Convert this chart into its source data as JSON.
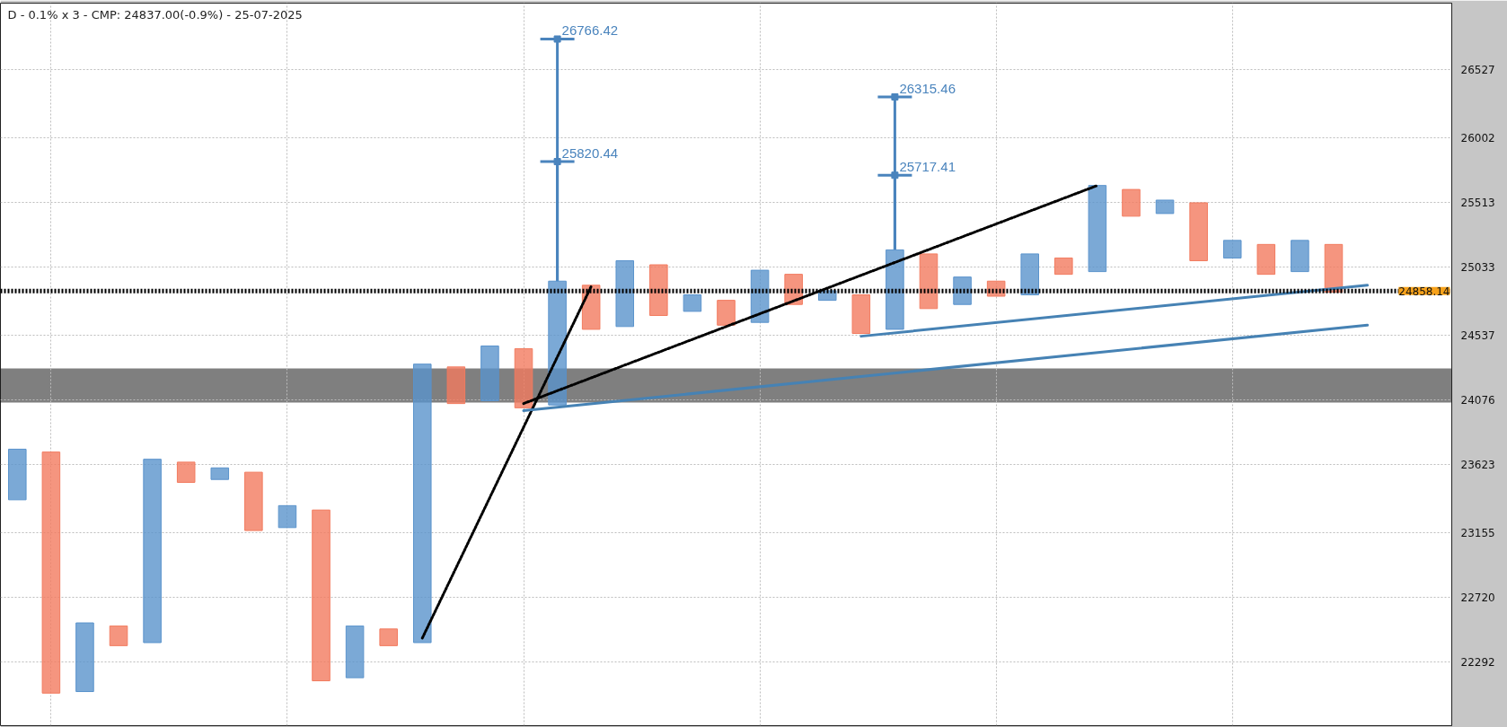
{
  "chart_data": {
    "type": "bar",
    "title": "D - 0.1% x 3 - CMP: 24837.00(-0.9%) - 25-07-2025",
    "categories": [
      null,
      null,
      null,
      null,
      null,
      null,
      null,
      null,
      null,
      null,
      null,
      null,
      null,
      null,
      null,
      null,
      null,
      null,
      null,
      null,
      null,
      null,
      null,
      null,
      null,
      null,
      null,
      null,
      null,
      null,
      null,
      null,
      null,
      null,
      null,
      null,
      null,
      null,
      null,
      null,
      null,
      null,
      null
    ],
    "series": [
      {
        "values": [
          350,
          -1620,
          450,
          -130,
          1240,
          -140,
          80,
          -400,
          150,
          -1140,
          340,
          -110,
          1910,
          -260,
          390,
          -420,
          890,
          -320,
          480,
          -370,
          120,
          -180,
          380,
          -220,
          70,
          -280,
          580,
          -400,
          200,
          -110,
          300,
          -120,
          640,
          -200,
          100,
          -430,
          130,
          -220,
          230,
          -350,
          null,
          null,
          null
        ],
        "base": [
          23380,
          23710,
          22100,
          22530,
          22420,
          23640,
          23520,
          23570,
          23190,
          23310,
          22190,
          22510,
          22420,
          24310,
          24070,
          24440,
          24040,
          24900,
          24600,
          25050,
          24710,
          24790,
          24630,
          24980,
          24790,
          24830,
          24580,
          25130,
          24760,
          24930,
          24830,
          25100,
          25000,
          25610,
          25430,
          25510,
          25100,
          25200,
          25000,
          25200,
          null,
          null,
          null
        ],
        "colors": [
          "#5a93cc",
          "#f27b5f",
          "#5a93cc",
          "#f27b5f",
          "#5a93cc",
          "#f27b5f",
          "#5a93cc",
          "#f27b5f",
          "#5a93cc",
          "#f27b5f",
          "#5a93cc",
          "#f27b5f",
          "#5a93cc",
          "#f27b5f",
          "#5a93cc",
          "#f27b5f",
          "#5a93cc",
          "#f27b5f",
          "#5a93cc",
          "#f27b5f",
          "#5a93cc",
          "#f27b5f",
          "#5a93cc",
          "#f27b5f",
          "#5a93cc",
          "#f27b5f",
          "#5a93cc",
          "#f27b5f",
          "#5a93cc",
          "#f27b5f",
          "#5a93cc",
          "#f27b5f",
          "#5a93cc",
          "#f27b5f",
          "#5a93cc",
          "#f27b5f",
          "#5a93cc",
          "#f27b5f",
          "#5a93cc",
          "#f27b5f",
          null,
          null,
          null
        ]
      },
      {
        "type": "scatter",
        "color": "#4a84bd",
        "marker": "square",
        "values": [
          null,
          null,
          null,
          null,
          null,
          null,
          null,
          null,
          null,
          null,
          null,
          null,
          null,
          null,
          null,
          null,
          25820.44,
          null,
          null,
          null,
          null,
          null,
          null,
          null,
          null,
          null,
          25717.41,
          null,
          null,
          null,
          null,
          null,
          null,
          null,
          null,
          null,
          null,
          null,
          null,
          null,
          null,
          null,
          null
        ],
        "errors": [
          null,
          null,
          null,
          null,
          null,
          null,
          null,
          null,
          null,
          null,
          null,
          null,
          null,
          null,
          null,
          null,
          [
            24930,
            25820.44
          ],
          null,
          null,
          null,
          null,
          null,
          null,
          null,
          null,
          null,
          [
            25160,
            25717.41
          ],
          null,
          null,
          null,
          null,
          null,
          null,
          null,
          null,
          null,
          null,
          null,
          null,
          null,
          null,
          null,
          null
        ],
        "value_labels": [
          null,
          null,
          null,
          null,
          null,
          null,
          null,
          null,
          null,
          null,
          null,
          null,
          null,
          null,
          null,
          null,
          "25820.44",
          null,
          null,
          null,
          null,
          null,
          null,
          null,
          null,
          null,
          "25717.41",
          null,
          null,
          null,
          null,
          null,
          null,
          null,
          null,
          null,
          null,
          null,
          null,
          null,
          null,
          null,
          null
        ]
      },
      {
        "type": "scatter",
        "color": "#4a84bd",
        "marker": "square",
        "values": [
          null,
          null,
          null,
          null,
          null,
          null,
          null,
          null,
          null,
          null,
          null,
          null,
          null,
          null,
          null,
          null,
          26766.42,
          null,
          null,
          null,
          null,
          null,
          null,
          null,
          null,
          null,
          26315.46,
          null,
          null,
          null,
          null,
          null,
          null,
          null,
          null,
          null,
          null,
          null,
          null,
          null,
          null,
          null,
          null
        ],
        "errors": [
          null,
          null,
          null,
          null,
          null,
          null,
          null,
          null,
          null,
          null,
          null,
          null,
          null,
          null,
          null,
          null,
          [
            24930,
            26766.42
          ],
          null,
          null,
          null,
          null,
          null,
          null,
          null,
          null,
          null,
          [
            25160,
            26315.46
          ],
          null,
          null,
          null,
          null,
          null,
          null,
          null,
          null,
          null,
          null,
          null,
          null,
          null,
          null,
          null,
          null
        ],
        "value_labels": [
          null,
          null,
          null,
          null,
          null,
          null,
          null,
          null,
          null,
          null,
          null,
          null,
          null,
          null,
          null,
          null,
          "26766.42",
          null,
          null,
          null,
          null,
          null,
          null,
          null,
          null,
          null,
          "26315.46",
          null,
          null,
          null,
          null,
          null,
          null,
          null,
          null,
          null,
          null,
          null,
          null,
          null,
          null,
          null,
          null
        ]
      },
      {
        "type": "line",
        "color": "#000000",
        "line_style": "dotted",
        "values": [
          null,
          null,
          null,
          null,
          null,
          null,
          null,
          null,
          null,
          null,
          null,
          null,
          22450,
          null,
          null,
          null,
          null,
          24890,
          null,
          null,
          null,
          null,
          null,
          null,
          null,
          null,
          null,
          null,
          null,
          null,
          null,
          null,
          null,
          null,
          null,
          null,
          null,
          null,
          null,
          null,
          null,
          null,
          null
        ]
      },
      {
        "type": "line",
        "color": "#000000",
        "line_style": "dotted",
        "values": [
          null,
          null,
          null,
          null,
          null,
          null,
          null,
          null,
          null,
          null,
          null,
          null,
          null,
          null,
          null,
          24050,
          null,
          null,
          null,
          null,
          null,
          null,
          null,
          null,
          null,
          null,
          null,
          null,
          null,
          null,
          null,
          null,
          25640,
          null,
          null,
          null,
          null,
          null,
          null,
          null,
          null,
          null,
          null
        ]
      },
      {
        "type": "line",
        "color": "#4682b4",
        "line_style": "solid",
        "values": [
          null,
          null,
          null,
          null,
          null,
          null,
          null,
          null,
          null,
          null,
          null,
          null,
          null,
          null,
          null,
          24000,
          null,
          null,
          null,
          null,
          null,
          null,
          null,
          null,
          null,
          null,
          null,
          null,
          null,
          null,
          null,
          null,
          null,
          null,
          null,
          null,
          null,
          null,
          null,
          null,
          24610,
          null,
          null
        ]
      },
      {
        "type": "line",
        "color": "#4682b4",
        "line_style": "solid",
        "values": [
          null,
          null,
          null,
          null,
          null,
          null,
          null,
          null,
          null,
          null,
          null,
          null,
          null,
          null,
          null,
          null,
          null,
          null,
          null,
          null,
          null,
          null,
          null,
          null,
          null,
          24530,
          null,
          null,
          null,
          null,
          null,
          null,
          null,
          null,
          null,
          null,
          null,
          null,
          null,
          null,
          24900,
          null,
          null
        ]
      }
    ],
    "ylim": [
      21880,
      27050
    ],
    "yticks": [
      22292,
      22720,
      23155,
      23623,
      24076,
      24537,
      25033,
      25513,
      26002,
      26527
    ],
    "log": true,
    "grid": true,
    "tick_labels": "y",
    "ref_lines": [
      {
        "axis": "y",
        "value": 24858.14,
        "label": "24858.14",
        "color": "#000000",
        "line_style": "dotted"
      }
    ],
    "bands": [
      {
        "axis": "y",
        "from": 24060,
        "to": 24300,
        "color": "#000000"
      }
    ]
  }
}
